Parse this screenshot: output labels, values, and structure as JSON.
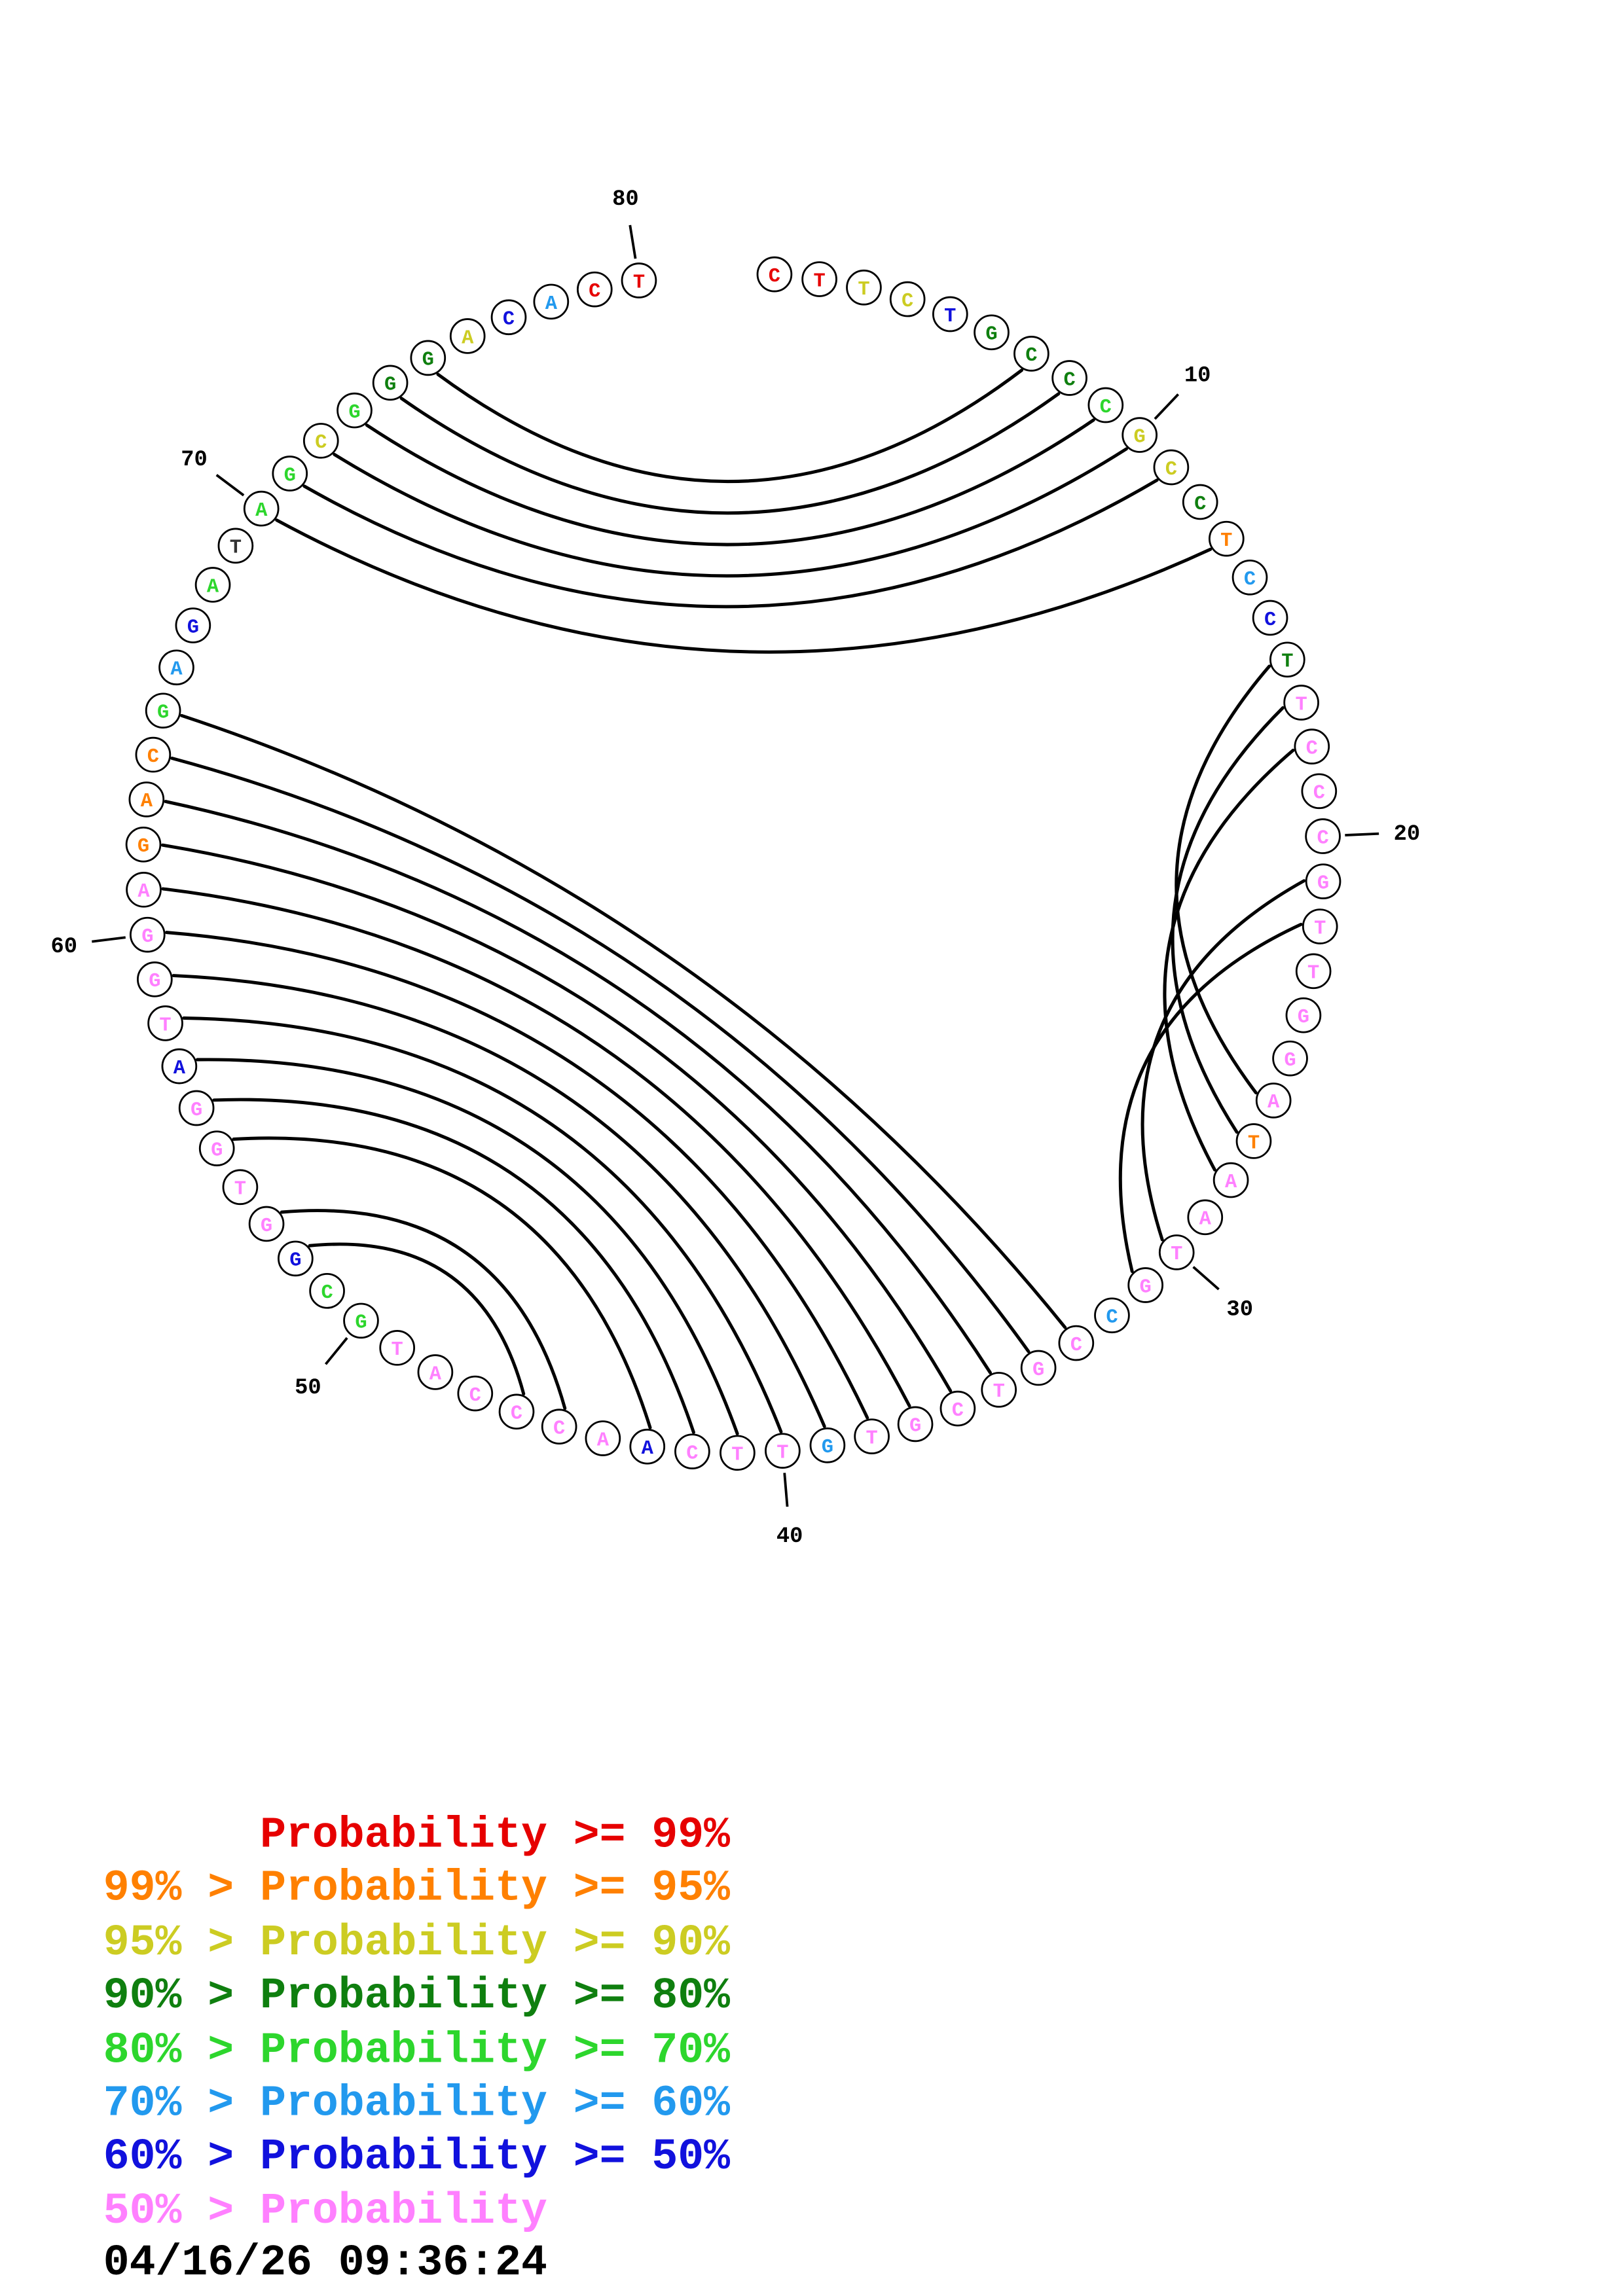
{
  "chart_data": {
    "type": "scatter",
    "plot_kind": "base-pair-probability-circle-plot",
    "sequence_length": 80,
    "sequence": "CTTCTGCCCGCCTCCTTCCCGTTGGATAATGCCGTCGTGTTCAACCCATGCGGTGGATGGAGACGAGATAGCGGGACACT",
    "nucleotides": [
      [
        1,
        "C",
        "#e60000"
      ],
      [
        2,
        "T",
        "#e60000"
      ],
      [
        3,
        "T",
        "#cccc22"
      ],
      [
        4,
        "C",
        "#cccc22"
      ],
      [
        5,
        "T",
        "#1111dd"
      ],
      [
        6,
        "G",
        "#0f7f0f"
      ],
      [
        7,
        "C",
        "#0f7f0f"
      ],
      [
        8,
        "C",
        "#0f7f0f"
      ],
      [
        9,
        "C",
        "#2dd62d"
      ],
      [
        10,
        "G",
        "#cccc22"
      ],
      [
        11,
        "C",
        "#cccc22"
      ],
      [
        12,
        "C",
        "#0f7f0f"
      ],
      [
        13,
        "T",
        "#ff8000"
      ],
      [
        14,
        "C",
        "#2299ee"
      ],
      [
        15,
        "C",
        "#1111dd"
      ],
      [
        16,
        "T",
        "#0f7f0f"
      ],
      [
        17,
        "T",
        "#ff80ff"
      ],
      [
        18,
        "C",
        "#ff80ff"
      ],
      [
        19,
        "C",
        "#ff80ff"
      ],
      [
        20,
        "C",
        "#ff80ff"
      ],
      [
        21,
        "G",
        "#ff80ff"
      ],
      [
        22,
        "T",
        "#ff80ff"
      ],
      [
        23,
        "T",
        "#ff80ff"
      ],
      [
        24,
        "G",
        "#ff80ff"
      ],
      [
        25,
        "G",
        "#ff80ff"
      ],
      [
        26,
        "A",
        "#ff80ff"
      ],
      [
        27,
        "T",
        "#ff8000"
      ],
      [
        28,
        "A",
        "#ff80ff"
      ],
      [
        29,
        "A",
        "#ff80ff"
      ],
      [
        30,
        "T",
        "#ff80ff"
      ],
      [
        31,
        "G",
        "#ff80ff"
      ],
      [
        32,
        "C",
        "#2299ee"
      ],
      [
        33,
        "C",
        "#ff80ff"
      ],
      [
        34,
        "G",
        "#ff80ff"
      ],
      [
        35,
        "T",
        "#ff80ff"
      ],
      [
        36,
        "C",
        "#ff80ff"
      ],
      [
        37,
        "G",
        "#ff80ff"
      ],
      [
        38,
        "T",
        "#ff80ff"
      ],
      [
        39,
        "G",
        "#2299ee"
      ],
      [
        40,
        "T",
        "#ff80ff"
      ],
      [
        41,
        "T",
        "#ff80ff"
      ],
      [
        42,
        "C",
        "#ff80ff"
      ],
      [
        43,
        "A",
        "#1111dd"
      ],
      [
        44,
        "A",
        "#ff80ff"
      ],
      [
        45,
        "C",
        "#ff80ff"
      ],
      [
        46,
        "C",
        "#ff80ff"
      ],
      [
        47,
        "C",
        "#ff80ff"
      ],
      [
        48,
        "A",
        "#ff80ff"
      ],
      [
        49,
        "T",
        "#ff80ff"
      ],
      [
        50,
        "G",
        "#2dd62d"
      ],
      [
        51,
        "C",
        "#2dd62d"
      ],
      [
        52,
        "G",
        "#1111dd"
      ],
      [
        53,
        "G",
        "#ff80ff"
      ],
      [
        54,
        "T",
        "#ff80ff"
      ],
      [
        55,
        "G",
        "#ff80ff"
      ],
      [
        56,
        "G",
        "#ff80ff"
      ],
      [
        57,
        "A",
        "#1111dd"
      ],
      [
        58,
        "T",
        "#ff80ff"
      ],
      [
        59,
        "G",
        "#ff80ff"
      ],
      [
        60,
        "G",
        "#ff80ff"
      ],
      [
        61,
        "A",
        "#ff80ff"
      ],
      [
        62,
        "G",
        "#ff8000"
      ],
      [
        63,
        "A",
        "#ff8000"
      ],
      [
        64,
        "C",
        "#ff8000"
      ],
      [
        65,
        "G",
        "#2dd62d"
      ],
      [
        66,
        "A",
        "#2299ee"
      ],
      [
        67,
        "G",
        "#1111dd"
      ],
      [
        68,
        "A",
        "#2dd62d"
      ],
      [
        69,
        "T",
        "#333333"
      ],
      [
        70,
        "A",
        "#2dd62d"
      ],
      [
        71,
        "G",
        "#2dd62d"
      ],
      [
        72,
        "C",
        "#cccc22"
      ],
      [
        73,
        "G",
        "#2dd62d"
      ],
      [
        74,
        "G",
        "#0f7f0f"
      ],
      [
        75,
        "G",
        "#0f7f0f"
      ],
      [
        76,
        "A",
        "#cccc22"
      ],
      [
        77,
        "C",
        "#1111dd"
      ],
      [
        78,
        "A",
        "#2299ee"
      ],
      [
        79,
        "C",
        "#e60000"
      ],
      [
        80,
        "T",
        "#e60000"
      ]
    ],
    "pairs": [
      [
        7,
        75
      ],
      [
        8,
        74
      ],
      [
        9,
        73
      ],
      [
        10,
        72
      ],
      [
        11,
        71
      ],
      [
        13,
        70
      ],
      [
        16,
        26
      ],
      [
        17,
        27
      ],
      [
        18,
        28
      ],
      [
        21,
        30
      ],
      [
        22,
        31
      ],
      [
        65,
        33
      ],
      [
        64,
        34
      ],
      [
        63,
        35
      ],
      [
        62,
        36
      ],
      [
        61,
        37
      ],
      [
        60,
        38
      ],
      [
        59,
        39
      ],
      [
        58,
        40
      ],
      [
        57,
        41
      ],
      [
        56,
        42
      ],
      [
        55,
        43
      ],
      [
        53,
        45
      ],
      [
        52,
        46
      ]
    ],
    "position_labels": [
      10,
      20,
      30,
      40,
      50,
      60,
      70,
      80
    ],
    "arc_color": "#000000"
  },
  "legend": {
    "rows": [
      {
        "text": "      Probability >= 99%",
        "color": "#e60000"
      },
      {
        "text": "99% > Probability >= 95%",
        "color": "#ff8000"
      },
      {
        "text": "95% > Probability >= 90%",
        "color": "#cccc22"
      },
      {
        "text": "90% > Probability >= 80%",
        "color": "#0f7f0f"
      },
      {
        "text": "80% > Probability >= 70%",
        "color": "#2dd62d"
      },
      {
        "text": "70% > Probability >= 60%",
        "color": "#2299ee"
      },
      {
        "text": "60% > Probability >= 50%",
        "color": "#1111dd"
      },
      {
        "text": "50% > Probability",
        "color": "#ff80ff"
      }
    ]
  },
  "footer": {
    "timestamp": "04/16/26 09:36:24"
  }
}
